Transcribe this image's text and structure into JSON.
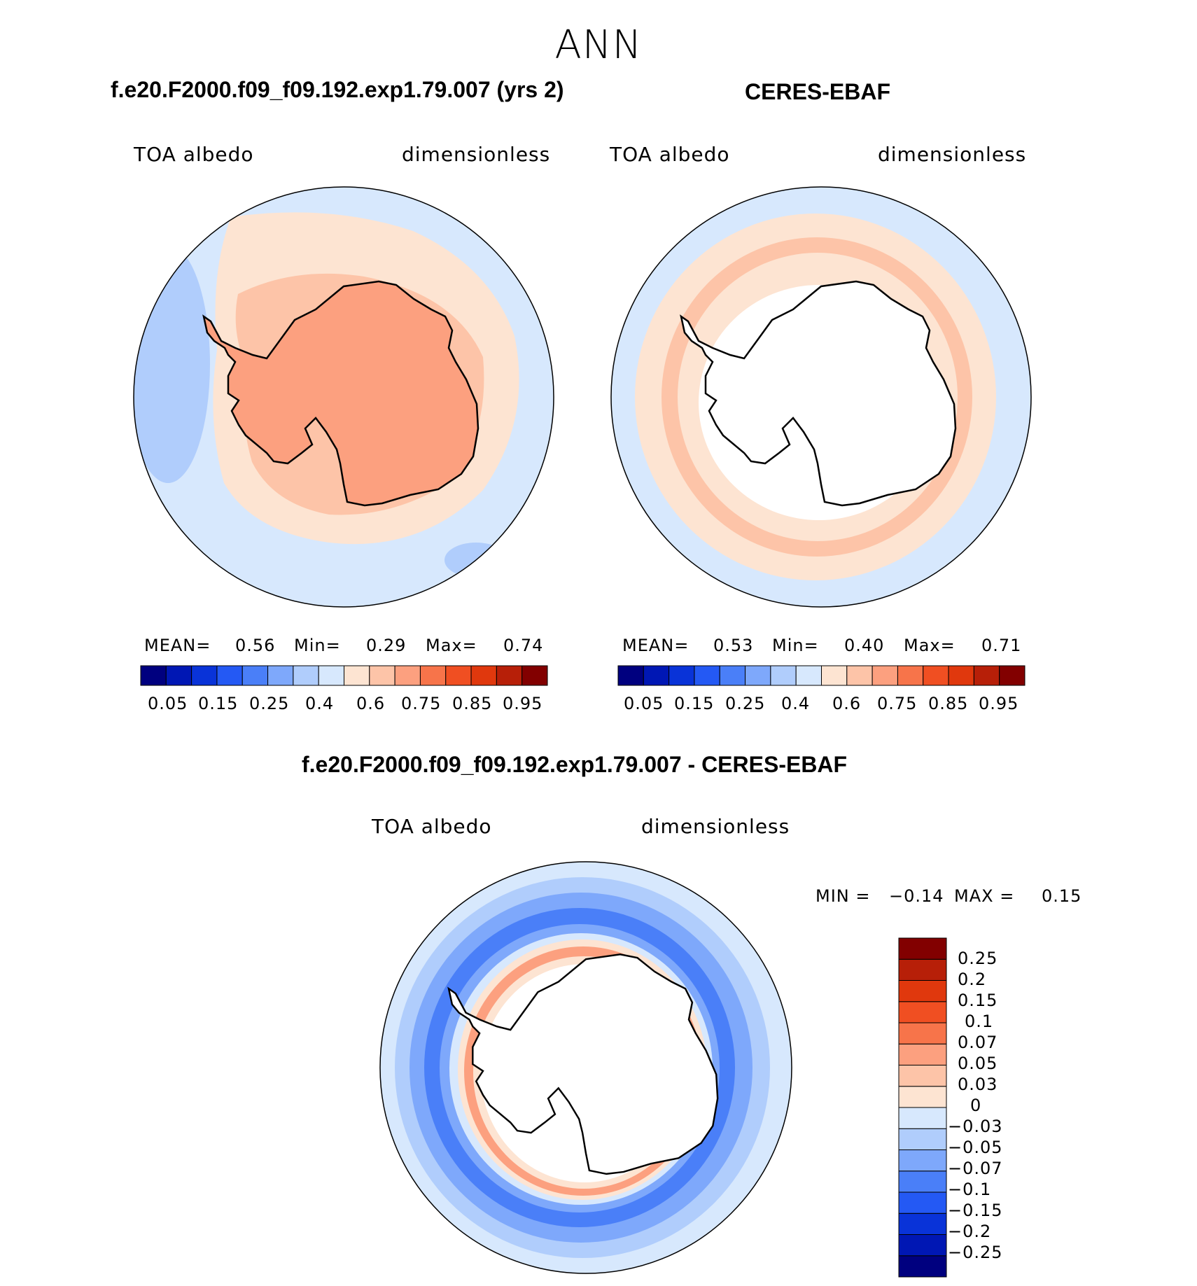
{
  "page": {
    "title": "ANN"
  },
  "colors": {
    "abs_palette": [
      "#00007f",
      "#0017b4",
      "#0933d8",
      "#2459f4",
      "#4a7ff8",
      "#7ea8fb",
      "#b0cdfc",
      "#d7e8fd",
      "#fde4d2",
      "#fdc4a8",
      "#fca07f",
      "#f7744a",
      "#f04f22",
      "#e0380d",
      "#b71f08",
      "#820000"
    ],
    "diff_palette": [
      "#00007f",
      "#0017b4",
      "#0933d8",
      "#2459f4",
      "#4a7ff8",
      "#7ea8fb",
      "#b0cdfc",
      "#d7e8fd",
      "#fde4d2",
      "#fdc4a8",
      "#fca07f",
      "#f7744a",
      "#f04f22",
      "#e0380d",
      "#b71f08",
      "#820000"
    ]
  },
  "panels": {
    "model": {
      "title": "f.e20.F2000.f09_f09.192.exp1.79.007 (yrs 2)",
      "left_label": "TOA  albedo",
      "right_label": "dimensionless",
      "mean_label": "MEAN=",
      "mean_value": "0.56",
      "min_label": "Min=",
      "min_value": "0.29",
      "max_label": "Max=",
      "max_value": "0.74",
      "colorbar_ticks": [
        "0.05",
        "0.15",
        "0.25",
        "0.4",
        "0.6",
        "0.75",
        "0.85",
        "0.95"
      ]
    },
    "obs": {
      "title": "CERES-EBAF",
      "left_label": "TOA  albedo",
      "right_label": "dimensionless",
      "mean_label": "MEAN=",
      "mean_value": "0.53",
      "min_label": "Min=",
      "min_value": "0.40",
      "max_label": "Max=",
      "max_value": "0.71",
      "colorbar_ticks": [
        "0.05",
        "0.15",
        "0.25",
        "0.4",
        "0.6",
        "0.75",
        "0.85",
        "0.95"
      ]
    },
    "diff": {
      "title": "f.e20.F2000.f09_f09.192.exp1.79.007 - CERES-EBAF",
      "left_label": "TOA  albedo",
      "right_label": "dimensionless",
      "min_label": "MIN  =",
      "min_value": "−0.14",
      "max_label": "MAX  =",
      "max_value": "0.15",
      "colorbar_ticks": [
        "0.25",
        "0.2",
        "0.15",
        "0.1",
        "0.07",
        "0.05",
        "0.03",
        "0",
        "−0.03",
        "−0.05",
        "−0.07",
        "−0.1",
        "−0.15",
        "−0.2",
        "−0.25"
      ]
    }
  }
}
